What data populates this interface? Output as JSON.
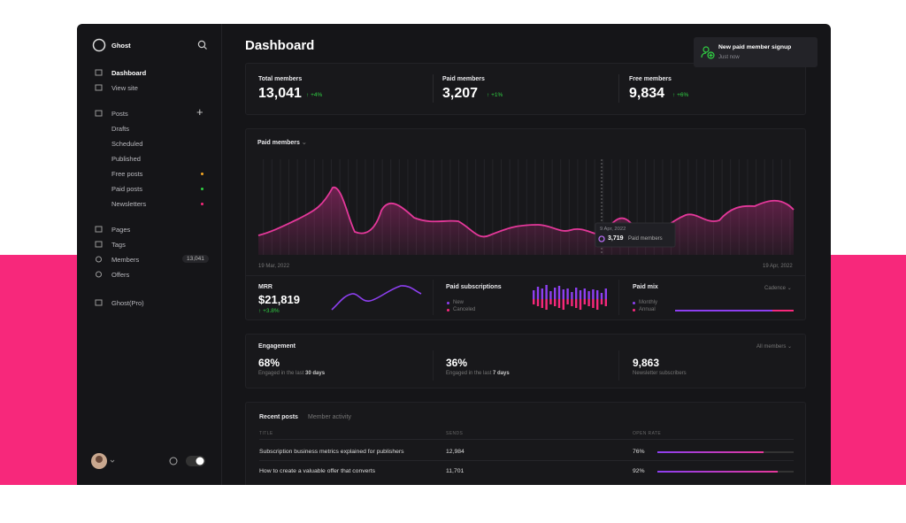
{
  "sidebar": {
    "brand": "Ghost",
    "nav": [
      "Dashboard",
      "View site",
      "Posts",
      "Drafts",
      "Scheduled",
      "Published",
      "Free posts",
      "Paid posts",
      "Newsletters",
      "Pages",
      "Tags",
      "Members",
      "Offers",
      "Ghost(Pro)"
    ],
    "members_badge": "13,041"
  },
  "header": {
    "title": "Dashboard"
  },
  "toast": {
    "title": "New paid member signup",
    "time": "Just now"
  },
  "stats": [
    {
      "label": "Total members",
      "value": "13,041",
      "change": "+4%"
    },
    {
      "label": "Paid members",
      "value": "3,207",
      "change": "+1%"
    },
    {
      "label": "Free members",
      "value": "9,834",
      "change": "+6%"
    }
  ],
  "chart_card": {
    "selector": "Paid members",
    "start_date": "19 Mar, 2022",
    "end_date": "19 Apr, 2022",
    "tooltip": {
      "date": "9 Apr, 2022",
      "value": "3,719",
      "label": "Paid members"
    }
  },
  "mrr": {
    "label": "MRR",
    "value": "$21,819",
    "change": "+3.8%"
  },
  "paid_subscriptions": {
    "label": "Paid subscriptions",
    "legend": [
      "New",
      "Canceled"
    ]
  },
  "paid_mix": {
    "label": "Paid mix",
    "selector": "Cadence",
    "legend": [
      "Monthly",
      "Annual"
    ]
  },
  "engagement": {
    "title": "Engagement",
    "selector": "All members",
    "items": [
      {
        "value": "68%",
        "caption": "Engaged in the last ",
        "emph": "30 days"
      },
      {
        "value": "36%",
        "caption": "Engaged in the last ",
        "emph": "7 days"
      },
      {
        "value": "9,863",
        "caption": "Newsletter subscribers",
        "emph": ""
      }
    ]
  },
  "recent": {
    "tabs": [
      "Recent posts",
      "Member activity"
    ],
    "columns": [
      "TITLE",
      "SENDS",
      "OPEN RATE"
    ],
    "rows": [
      [
        "Subscription business metrics explained for publishers",
        "12,984",
        "76%"
      ],
      [
        "How to create a valuable offer that converts",
        "11,701",
        "92%"
      ]
    ]
  }
}
